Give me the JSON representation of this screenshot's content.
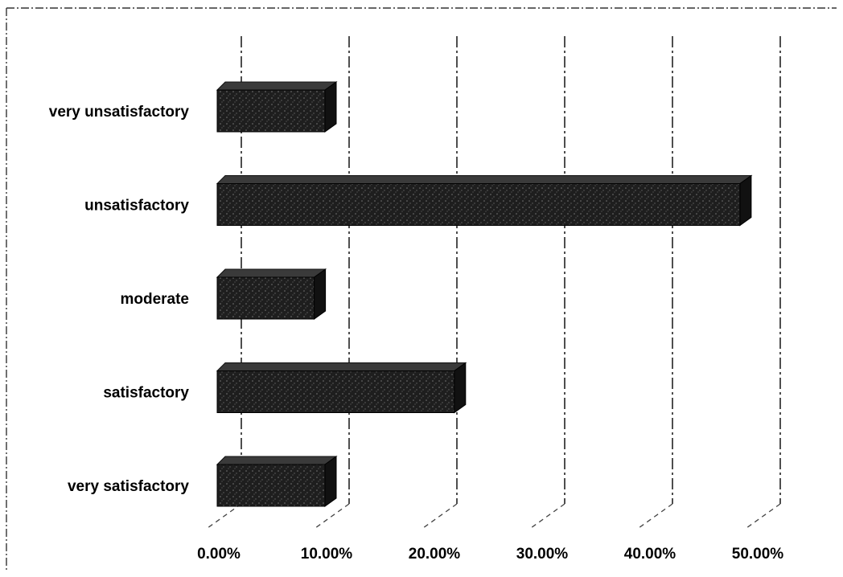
{
  "chart_data": {
    "type": "bar",
    "orientation": "horizontal",
    "style": "3d",
    "categories": [
      "very unsatisfactory",
      "unsatisfactory",
      "moderate",
      "satisfactory",
      "very satisfactory"
    ],
    "values": [
      10.0,
      48.5,
      9.0,
      22.0,
      10.0
    ],
    "value_format": "percent",
    "xlim": [
      0,
      50
    ],
    "xticks": [
      "0.00%",
      "10.00%",
      "20.00%",
      "30.00%",
      "40.00%",
      "50.00%"
    ],
    "grid": true,
    "legend": false,
    "bar_color": "#1e1e1e"
  }
}
